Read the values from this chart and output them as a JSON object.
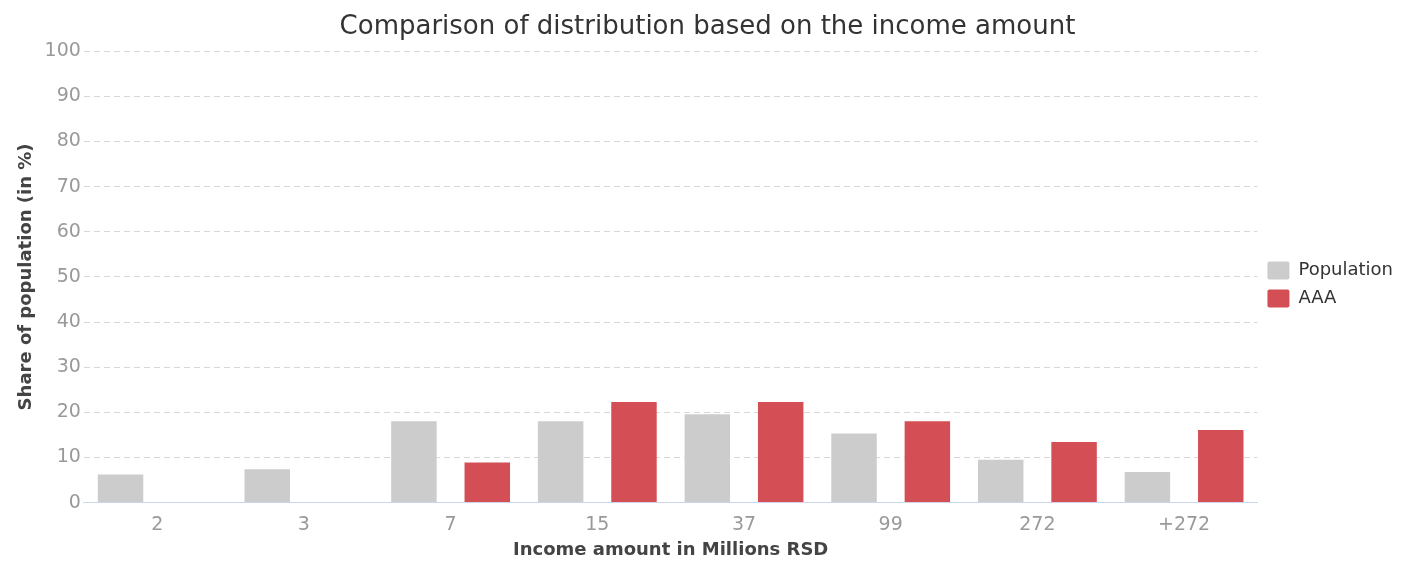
{
  "chart_data": {
    "type": "bar",
    "title": "Comparison of distribution based on the income amount",
    "xlabel": "Income amount in Millions RSD",
    "ylabel": "Share of population (in %)",
    "categories": [
      "2",
      "3",
      "7",
      "15",
      "37",
      "99",
      "272",
      "+272"
    ],
    "series": [
      {
        "name": "Population",
        "color": "#cccccc",
        "values": [
          6.2,
          7.4,
          18,
          18,
          19.6,
          15.3,
          9.5,
          6.8
        ]
      },
      {
        "name": "AAA",
        "color": "#d44f55",
        "values": [
          null,
          null,
          8.9,
          22.3,
          22.3,
          18,
          13.4,
          16.1
        ]
      }
    ],
    "ylim": [
      0,
      100
    ],
    "yticks": [
      0,
      10,
      20,
      30,
      40,
      50,
      60,
      70,
      80,
      90,
      100
    ],
    "grid": "y",
    "legend": "right"
  }
}
